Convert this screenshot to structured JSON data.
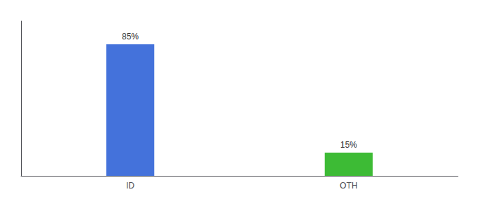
{
  "chart_data": {
    "type": "bar",
    "categories": [
      "ID",
      "OTH"
    ],
    "values": [
      85,
      15
    ],
    "value_labels": [
      "85%",
      "15%"
    ],
    "colors": [
      "#4472db",
      "#3dbb35"
    ],
    "ylim": [
      0,
      100
    ],
    "yticks": [],
    "data_labels": true,
    "tick_labels": "x",
    "grid": false
  }
}
